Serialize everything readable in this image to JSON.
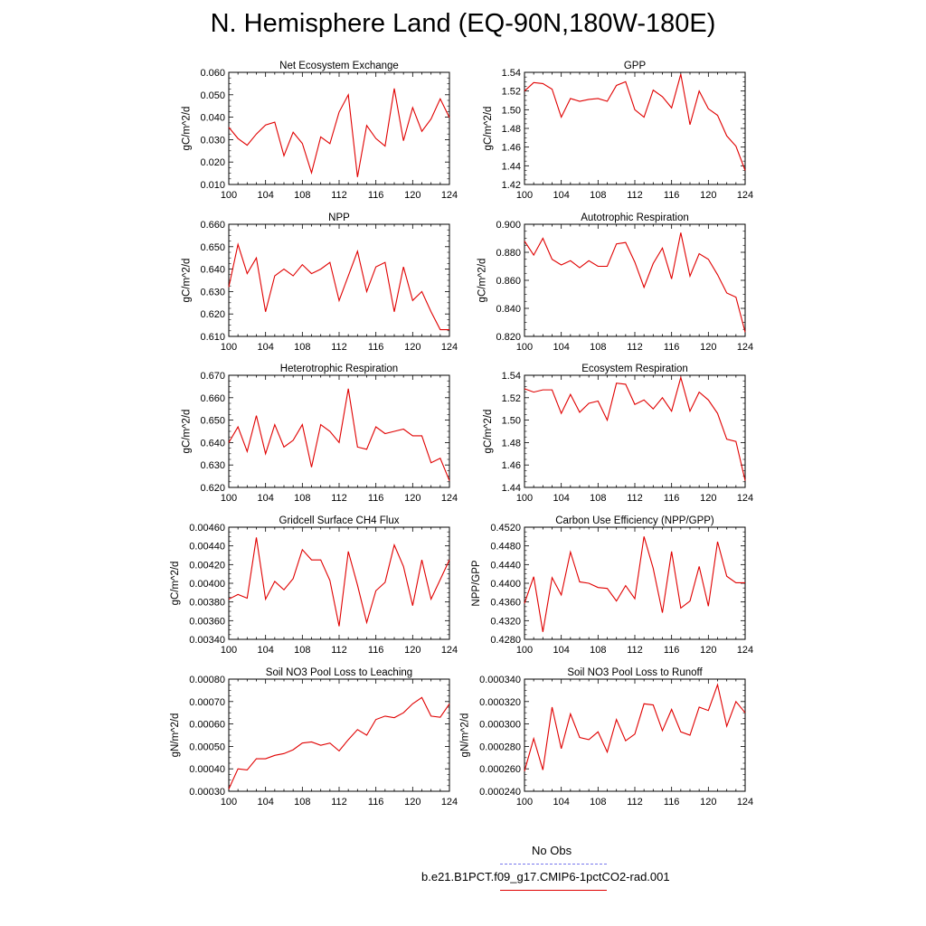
{
  "title": "N. Hemisphere Land (EQ-90N,180W-180E)",
  "legend": {
    "obs_label": "No Obs",
    "obs_color": "#7777ee",
    "model_label": "b.e21.B1PCT.f09_g17.CMIP6-1pctCO2-rad.001",
    "model_color": "#e00000"
  },
  "chart_data": [
    {
      "type": "line",
      "title": "Net Ecosystem Exchange",
      "ylabel": "gC/m^2/d",
      "xlabel": "",
      "xlim": [
        100,
        124
      ],
      "xticks": [
        "100",
        "104",
        "108",
        "112",
        "116",
        "120",
        "124"
      ],
      "ylim": [
        0.01,
        0.06
      ],
      "yticks": [
        "0.010",
        "0.020",
        "0.030",
        "0.040",
        "0.050",
        "0.060"
      ],
      "x": [
        100,
        101,
        102,
        103,
        104,
        105,
        106,
        107,
        108,
        109,
        110,
        111,
        112,
        113,
        114,
        115,
        116,
        117,
        118,
        119,
        120,
        121,
        122,
        123,
        124
      ],
      "series": [
        {
          "color": "#e00000",
          "values": [
            0.0355,
            0.0305,
            0.0275,
            0.0325,
            0.0365,
            0.0378,
            0.0228,
            0.0333,
            0.0283,
            0.0152,
            0.0312,
            0.0282,
            0.0423,
            0.05,
            0.0133,
            0.0363,
            0.0305,
            0.0271,
            0.0528,
            0.0295,
            0.0443,
            0.0337,
            0.0392,
            0.0482,
            0.0398
          ]
        }
      ]
    },
    {
      "type": "line",
      "title": "GPP",
      "ylabel": "gC/m^2/d",
      "xlabel": "",
      "xlim": [
        100,
        124
      ],
      "xticks": [
        "100",
        "104",
        "108",
        "112",
        "116",
        "120",
        "124"
      ],
      "ylim": [
        1.42,
        1.54
      ],
      "yticks": [
        "1.42",
        "1.44",
        "1.46",
        "1.48",
        "1.50",
        "1.52",
        "1.54"
      ],
      "x": [
        100,
        101,
        102,
        103,
        104,
        105,
        106,
        107,
        108,
        109,
        110,
        111,
        112,
        113,
        114,
        115,
        116,
        117,
        118,
        119,
        120,
        121,
        122,
        123,
        124
      ],
      "series": [
        {
          "color": "#e00000",
          "values": [
            1.52,
            1.529,
            1.528,
            1.522,
            1.492,
            1.512,
            1.509,
            1.511,
            1.512,
            1.509,
            1.526,
            1.53,
            1.5,
            1.492,
            1.521,
            1.514,
            1.502,
            1.538,
            1.484,
            1.52,
            1.501,
            1.494,
            1.472,
            1.461,
            1.435
          ]
        }
      ]
    },
    {
      "type": "line",
      "title": "NPP",
      "ylabel": "gC/m^2/d",
      "xlabel": "",
      "xlim": [
        100,
        124
      ],
      "xticks": [
        "100",
        "104",
        "108",
        "112",
        "116",
        "120",
        "124"
      ],
      "ylim": [
        0.61,
        0.66
      ],
      "yticks": [
        "0.610",
        "0.620",
        "0.630",
        "0.640",
        "0.650",
        "0.660"
      ],
      "x": [
        100,
        101,
        102,
        103,
        104,
        105,
        106,
        107,
        108,
        109,
        110,
        111,
        112,
        113,
        114,
        115,
        116,
        117,
        118,
        119,
        120,
        121,
        122,
        123,
        124
      ],
      "series": [
        {
          "color": "#e00000",
          "values": [
            0.632,
            0.651,
            0.638,
            0.645,
            0.621,
            0.637,
            0.64,
            0.637,
            0.642,
            0.638,
            0.64,
            0.643,
            0.626,
            0.637,
            0.648,
            0.63,
            0.641,
            0.643,
            0.621,
            0.641,
            0.626,
            0.63,
            0.621,
            0.613,
            0.613
          ]
        }
      ]
    },
    {
      "type": "line",
      "title": "Autotrophic Respiration",
      "ylabel": "gC/m^2/d",
      "xlabel": "",
      "xlim": [
        100,
        124
      ],
      "xticks": [
        "100",
        "104",
        "108",
        "112",
        "116",
        "120",
        "124"
      ],
      "ylim": [
        0.82,
        0.9
      ],
      "yticks": [
        "0.820",
        "0.840",
        "0.860",
        "0.880",
        "0.900"
      ],
      "x": [
        100,
        101,
        102,
        103,
        104,
        105,
        106,
        107,
        108,
        109,
        110,
        111,
        112,
        113,
        114,
        115,
        116,
        117,
        118,
        119,
        120,
        121,
        122,
        123,
        124
      ],
      "series": [
        {
          "color": "#e00000",
          "values": [
            0.888,
            0.878,
            0.89,
            0.875,
            0.871,
            0.874,
            0.869,
            0.874,
            0.87,
            0.87,
            0.886,
            0.887,
            0.873,
            0.855,
            0.872,
            0.883,
            0.861,
            0.894,
            0.863,
            0.879,
            0.875,
            0.864,
            0.851,
            0.848,
            0.823
          ]
        }
      ]
    },
    {
      "type": "line",
      "title": "Heterotrophic Respiration",
      "ylabel": "gC/m^2/d",
      "xlabel": "",
      "xlim": [
        100,
        124
      ],
      "xticks": [
        "100",
        "104",
        "108",
        "112",
        "116",
        "120",
        "124"
      ],
      "ylim": [
        0.62,
        0.67
      ],
      "yticks": [
        "0.620",
        "0.630",
        "0.640",
        "0.650",
        "0.660",
        "0.670"
      ],
      "x": [
        100,
        101,
        102,
        103,
        104,
        105,
        106,
        107,
        108,
        109,
        110,
        111,
        112,
        113,
        114,
        115,
        116,
        117,
        118,
        119,
        120,
        121,
        122,
        123,
        124
      ],
      "series": [
        {
          "color": "#e00000",
          "values": [
            0.64,
            0.647,
            0.636,
            0.652,
            0.635,
            0.648,
            0.638,
            0.641,
            0.648,
            0.629,
            0.648,
            0.645,
            0.64,
            0.664,
            0.638,
            0.637,
            0.647,
            0.644,
            0.645,
            0.646,
            0.643,
            0.643,
            0.631,
            0.633,
            0.623
          ]
        }
      ]
    },
    {
      "type": "line",
      "title": "Ecosystem Respiration",
      "ylabel": "gC/m^2/d",
      "xlabel": "",
      "xlim": [
        100,
        124
      ],
      "xticks": [
        "100",
        "104",
        "108",
        "112",
        "116",
        "120",
        "124"
      ],
      "ylim": [
        1.44,
        1.54
      ],
      "yticks": [
        "1.44",
        "1.46",
        "1.48",
        "1.50",
        "1.52",
        "1.54"
      ],
      "x": [
        100,
        101,
        102,
        103,
        104,
        105,
        106,
        107,
        108,
        109,
        110,
        111,
        112,
        113,
        114,
        115,
        116,
        117,
        118,
        119,
        120,
        121,
        122,
        123,
        124
      ],
      "series": [
        {
          "color": "#e00000",
          "values": [
            1.528,
            1.525,
            1.527,
            1.527,
            1.506,
            1.523,
            1.507,
            1.515,
            1.517,
            1.5,
            1.533,
            1.532,
            1.514,
            1.518,
            1.51,
            1.52,
            1.508,
            1.538,
            1.508,
            1.525,
            1.518,
            1.506,
            1.483,
            1.481,
            1.446
          ]
        }
      ]
    },
    {
      "type": "line",
      "title": "Gridcell Surface CH4 Flux",
      "ylabel": "gC/m^2/d",
      "xlabel": "",
      "xlim": [
        100,
        124
      ],
      "xticks": [
        "100",
        "104",
        "108",
        "112",
        "116",
        "120",
        "124"
      ],
      "ylim": [
        0.0034,
        0.0046
      ],
      "yticks": [
        "0.00340",
        "0.00360",
        "0.00380",
        "0.00400",
        "0.00420",
        "0.00440",
        "0.00460"
      ],
      "x": [
        100,
        101,
        102,
        103,
        104,
        105,
        106,
        107,
        108,
        109,
        110,
        111,
        112,
        113,
        114,
        115,
        116,
        117,
        118,
        119,
        120,
        121,
        122,
        123,
        124
      ],
      "series": [
        {
          "color": "#e00000",
          "values": [
            0.00383,
            0.00388,
            0.00384,
            0.00449,
            0.00383,
            0.00402,
            0.00393,
            0.00405,
            0.00436,
            0.00425,
            0.00425,
            0.00403,
            0.00354,
            0.00434,
            0.00398,
            0.00358,
            0.00392,
            0.00401,
            0.00441,
            0.00418,
            0.00376,
            0.00425,
            0.00383,
            0.00404,
            0.00425
          ]
        }
      ]
    },
    {
      "type": "line",
      "title": "Carbon Use Efficiency (NPP/GPP)",
      "ylabel": "NPP/GPP",
      "xlabel": "",
      "xlim": [
        100,
        124
      ],
      "xticks": [
        "100",
        "104",
        "108",
        "112",
        "116",
        "120",
        "124"
      ],
      "ylim": [
        0.428,
        0.452
      ],
      "yticks": [
        "0.4280",
        "0.4320",
        "0.4360",
        "0.4400",
        "0.4440",
        "0.4480",
        "0.4520"
      ],
      "x": [
        100,
        101,
        102,
        103,
        104,
        105,
        106,
        107,
        108,
        109,
        110,
        111,
        112,
        113,
        114,
        115,
        116,
        117,
        118,
        119,
        120,
        121,
        122,
        123,
        124
      ],
      "series": [
        {
          "color": "#e00000",
          "values": [
            0.4357,
            0.4414,
            0.4296,
            0.4412,
            0.4375,
            0.4467,
            0.4403,
            0.44,
            0.4391,
            0.4389,
            0.4362,
            0.4395,
            0.4367,
            0.45,
            0.4432,
            0.4337,
            0.4468,
            0.4347,
            0.4362,
            0.4436,
            0.4351,
            0.4489,
            0.4415,
            0.4401,
            0.4401
          ]
        }
      ]
    },
    {
      "type": "line",
      "title": "Soil NO3 Pool Loss to Leaching",
      "ylabel": "gN/m^2/d",
      "xlabel": "",
      "xlim": [
        100,
        124
      ],
      "xticks": [
        "100",
        "104",
        "108",
        "112",
        "116",
        "120",
        "124"
      ],
      "ylim": [
        0.0003,
        0.0008
      ],
      "yticks": [
        "0.00030",
        "0.00040",
        "0.00050",
        "0.00060",
        "0.00070",
        "0.00080"
      ],
      "x": [
        100,
        101,
        102,
        103,
        104,
        105,
        106,
        107,
        108,
        109,
        110,
        111,
        112,
        113,
        114,
        115,
        116,
        117,
        118,
        119,
        120,
        121,
        122,
        123,
        124
      ],
      "series": [
        {
          "color": "#e00000",
          "values": [
            0.00031,
            0.0004,
            0.000395,
            0.000445,
            0.000445,
            0.00046,
            0.000468,
            0.000485,
            0.000515,
            0.00052,
            0.000505,
            0.000515,
            0.00048,
            0.00053,
            0.000575,
            0.00055,
            0.00062,
            0.000635,
            0.000628,
            0.00065,
            0.00069,
            0.000718,
            0.000635,
            0.00063,
            0.00069
          ]
        }
      ]
    },
    {
      "type": "line",
      "title": "Soil NO3 Pool Loss to Runoff",
      "ylabel": "gN/m^2/d",
      "xlabel": "",
      "xlim": [
        100,
        124
      ],
      "xticks": [
        "100",
        "104",
        "108",
        "112",
        "116",
        "120",
        "124"
      ],
      "ylim": [
        0.00024,
        0.00034
      ],
      "yticks": [
        "0.000240",
        "0.000260",
        "0.000280",
        "0.000300",
        "0.000320",
        "0.000340"
      ],
      "x": [
        100,
        101,
        102,
        103,
        104,
        105,
        106,
        107,
        108,
        109,
        110,
        111,
        112,
        113,
        114,
        115,
        116,
        117,
        118,
        119,
        120,
        121,
        122,
        123,
        124
      ],
      "series": [
        {
          "color": "#e00000",
          "values": [
            0.000258,
            0.000287,
            0.000259,
            0.000315,
            0.000278,
            0.000309,
            0.000288,
            0.000286,
            0.000293,
            0.000275,
            0.000304,
            0.000285,
            0.000291,
            0.000318,
            0.000317,
            0.000294,
            0.000313,
            0.000293,
            0.00029,
            0.000315,
            0.000312,
            0.000335,
            0.000298,
            0.00032,
            0.00031
          ]
        }
      ]
    }
  ]
}
